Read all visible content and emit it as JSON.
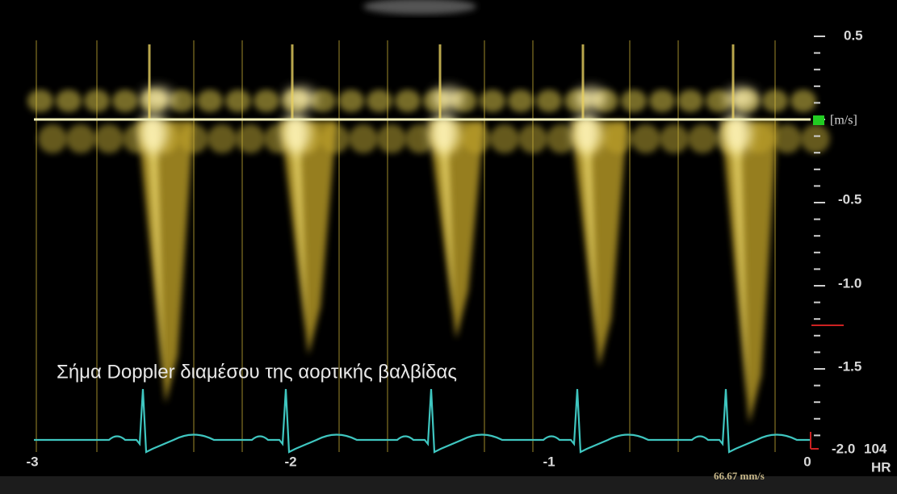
{
  "caption": "Σήμα Doppler διαμέσου της αορτικής βαλβίδας",
  "velocity_scale": {
    "unit": "[m/s]",
    "labels": [
      "0.5",
      "-0.5",
      "-1.0",
      "-1.5",
      "-2.0"
    ]
  },
  "time_scale": {
    "labels": [
      "-3",
      "-2",
      "-1",
      "0"
    ]
  },
  "heart_rate": {
    "value": "104",
    "label": "HR"
  },
  "sweep_speed": "66.67 mm/s"
}
